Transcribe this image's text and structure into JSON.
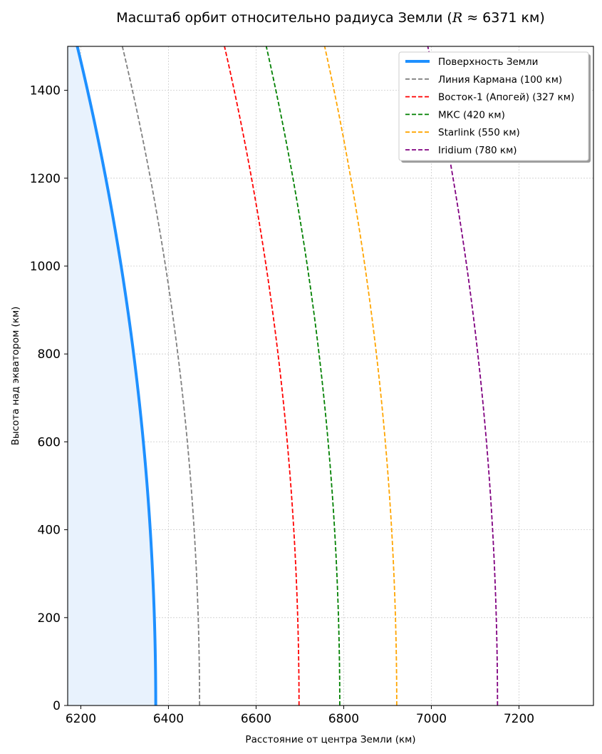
{
  "chart_data": {
    "type": "line",
    "title": "Масштаб орбит относительно радиуса Земли (R ≈ 6371 км)",
    "title_prefix": "Масштаб орбит относительно радиуса Земли (",
    "title_symbol": "R",
    "title_suffix": " ≈ 6371 км)",
    "xlabel": "Расстояние от центра Земли (км)",
    "ylabel": "Высота над экватором (км)",
    "xlim": [
      6170,
      7370
    ],
    "ylim": [
      0,
      1500
    ],
    "xticks": [
      6200,
      6400,
      6600,
      6800,
      7000,
      7200
    ],
    "yticks": [
      0,
      200,
      400,
      600,
      800,
      1000,
      1200,
      1400
    ],
    "grid": true,
    "legend_position": "top-right",
    "earth_radius": 6371,
    "earth_fill_color": "#e8f2fd",
    "series": [
      {
        "name": "Поверхность Земли",
        "radius": 6371,
        "color": "#1e90ff",
        "style": "solid",
        "filled": true
      },
      {
        "name": "Линия Кармана (100 км)",
        "radius": 6471,
        "color": "#808080",
        "style": "dashed"
      },
      {
        "name": "Восток-1 (Апогей) (327 км)",
        "radius": 6698,
        "color": "#ff0000",
        "style": "dashed"
      },
      {
        "name": "МКС (420 км)",
        "radius": 6791,
        "color": "#008000",
        "style": "dashed"
      },
      {
        "name": "Starlink (550 км)",
        "radius": 6921,
        "color": "#ffa500",
        "style": "dashed"
      },
      {
        "name": "Iridium (780 км)",
        "radius": 7151,
        "color": "#800080",
        "style": "dashed"
      }
    ]
  }
}
